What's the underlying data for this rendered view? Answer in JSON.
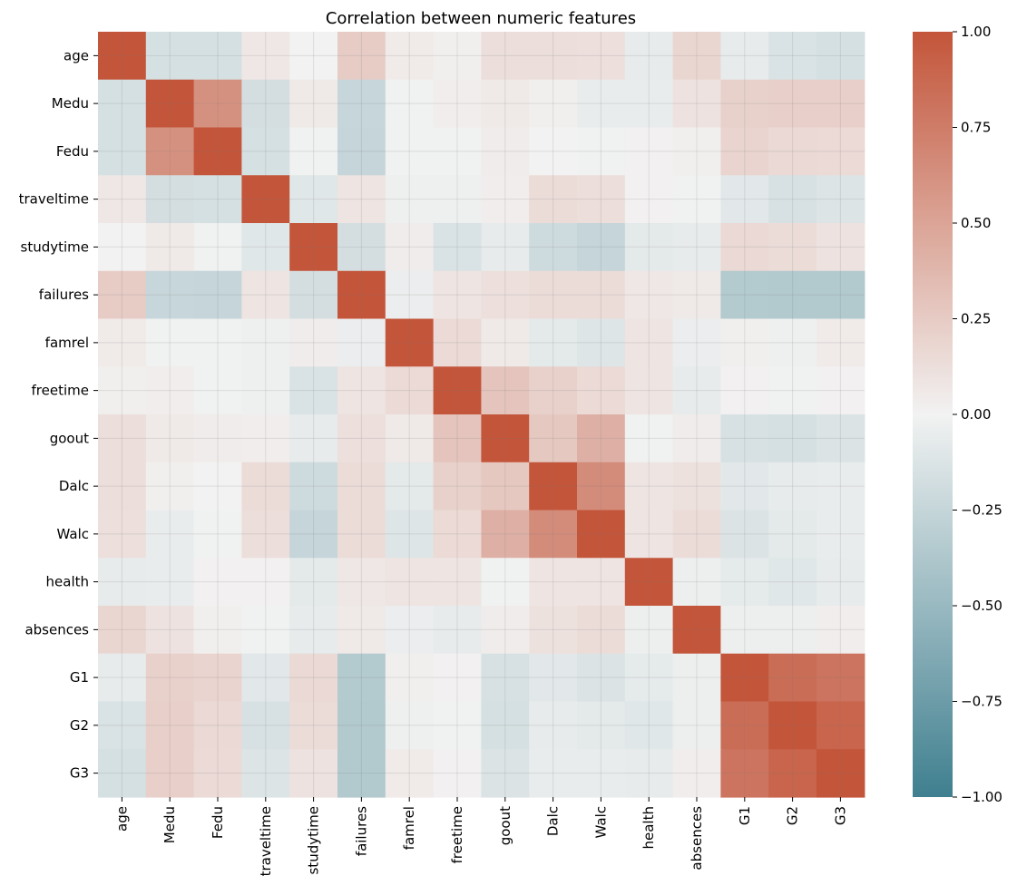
{
  "chart_data": {
    "type": "heatmap",
    "title": "Correlation between numeric features",
    "labels": [
      "age",
      "Medu",
      "Fedu",
      "traveltime",
      "studytime",
      "failures",
      "famrel",
      "freetime",
      "goout",
      "Dalc",
      "Walc",
      "health",
      "absences",
      "G1",
      "G2",
      "G3"
    ],
    "matrix": [
      [
        1.0,
        -0.16,
        -0.16,
        0.07,
        0.0,
        0.24,
        0.05,
        0.02,
        0.13,
        0.13,
        0.12,
        -0.06,
        0.18,
        -0.06,
        -0.14,
        -0.16
      ],
      [
        -0.16,
        1.0,
        0.62,
        -0.17,
        0.06,
        -0.24,
        -0.01,
        0.03,
        0.06,
        0.02,
        -0.05,
        -0.05,
        0.1,
        0.21,
        0.22,
        0.22
      ],
      [
        -0.16,
        0.62,
        1.0,
        -0.16,
        -0.01,
        -0.25,
        -0.01,
        -0.01,
        0.04,
        0.0,
        -0.01,
        0.01,
        0.02,
        0.19,
        0.16,
        0.15
      ],
      [
        0.07,
        -0.17,
        -0.16,
        1.0,
        -0.1,
        0.09,
        -0.02,
        -0.02,
        0.03,
        0.14,
        0.13,
        0.01,
        -0.01,
        -0.09,
        -0.15,
        -0.12
      ],
      [
        0.0,
        0.06,
        -0.01,
        -0.1,
        1.0,
        -0.17,
        0.04,
        -0.14,
        -0.06,
        -0.2,
        -0.25,
        -0.08,
        -0.06,
        0.16,
        0.14,
        0.1
      ],
      [
        0.24,
        -0.24,
        -0.25,
        0.09,
        -0.17,
        1.0,
        -0.04,
        0.09,
        0.12,
        0.14,
        0.14,
        0.07,
        0.06,
        -0.35,
        -0.36,
        -0.36
      ],
      [
        0.05,
        -0.01,
        -0.01,
        -0.02,
        0.04,
        -0.04,
        1.0,
        0.15,
        0.06,
        -0.08,
        -0.11,
        0.09,
        -0.04,
        0.02,
        -0.02,
        0.05
      ],
      [
        0.02,
        0.03,
        -0.01,
        -0.02,
        -0.14,
        0.09,
        0.15,
        1.0,
        0.29,
        0.21,
        0.15,
        0.08,
        -0.06,
        0.01,
        -0.01,
        0.01
      ],
      [
        0.13,
        0.06,
        0.04,
        0.03,
        -0.06,
        0.12,
        0.06,
        0.29,
        1.0,
        0.27,
        0.42,
        -0.01,
        0.04,
        -0.15,
        -0.16,
        -0.13
      ],
      [
        0.13,
        0.02,
        0.0,
        0.14,
        -0.2,
        0.14,
        -0.08,
        0.21,
        0.27,
        1.0,
        0.65,
        0.08,
        0.11,
        -0.09,
        -0.06,
        -0.05
      ],
      [
        0.12,
        -0.05,
        -0.01,
        0.13,
        -0.25,
        0.14,
        -0.11,
        0.15,
        0.42,
        0.65,
        1.0,
        0.09,
        0.14,
        -0.13,
        -0.08,
        -0.05
      ],
      [
        -0.06,
        -0.05,
        0.01,
        0.01,
        -0.08,
        0.07,
        0.09,
        0.08,
        -0.01,
        0.08,
        0.09,
        1.0,
        -0.03,
        -0.07,
        -0.1,
        -0.06
      ],
      [
        0.18,
        0.1,
        0.02,
        -0.01,
        -0.06,
        0.06,
        -0.04,
        -0.06,
        0.04,
        0.11,
        0.14,
        -0.03,
        1.0,
        -0.03,
        -0.03,
        0.03
      ],
      [
        -0.06,
        0.21,
        0.19,
        -0.09,
        0.16,
        -0.35,
        0.02,
        0.01,
        -0.15,
        -0.09,
        -0.13,
        -0.07,
        -0.03,
        1.0,
        0.85,
        0.8
      ],
      [
        -0.14,
        0.22,
        0.16,
        -0.15,
        0.14,
        -0.36,
        -0.02,
        -0.01,
        -0.16,
        -0.06,
        -0.08,
        -0.1,
        -0.03,
        0.85,
        1.0,
        0.9
      ],
      [
        -0.16,
        0.22,
        0.15,
        -0.12,
        0.1,
        -0.36,
        0.05,
        0.01,
        -0.13,
        -0.05,
        -0.05,
        -0.06,
        0.03,
        0.8,
        0.9,
        1.0
      ]
    ],
    "vmin": -1.0,
    "vmax": 1.0,
    "colorbar_ticks": [
      "1.00",
      "0.75",
      "0.50",
      "0.25",
      "0.00",
      "−0.25",
      "−0.50",
      "−0.75",
      "−1.00"
    ],
    "colormap": {
      "negative": "#3f7f8f",
      "neutral": "#f2f2f2",
      "positive": "#c3553a"
    },
    "grid": true
  }
}
